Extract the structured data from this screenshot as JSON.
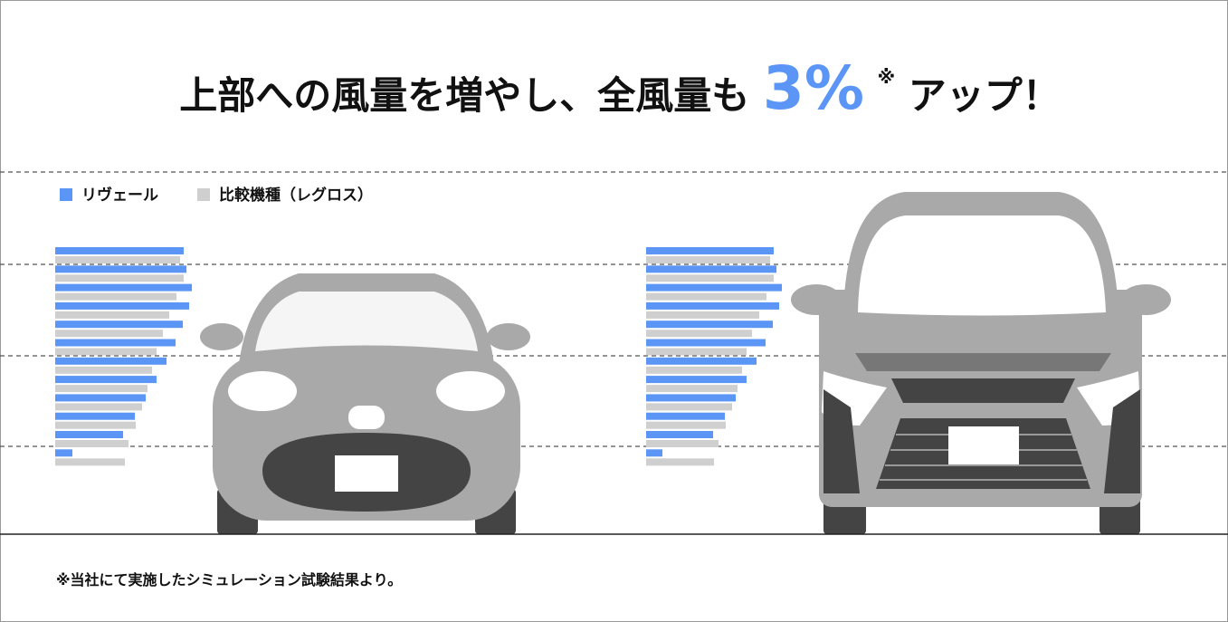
{
  "header": {
    "title_before": "上部への風量を増やし、全風量も",
    "title_highlight": "3%",
    "title_mark": "※",
    "title_after": "アップ！"
  },
  "chart_data": [
    {
      "type": "bar",
      "orientation": "horizontal",
      "series": [
        {
          "name": "リヴェール",
          "color": "#5b95f5",
          "values": [
            142,
            145,
            151,
            148,
            141,
            133,
            123,
            112,
            100,
            88,
            75,
            19
          ]
        },
        {
          "name": "比較機種（レグロス）",
          "color": "#cfcfcf",
          "values": [
            138,
            142,
            134,
            126,
            119,
            112,
            107,
            102,
            96,
            89,
            81,
            77
          ]
        }
      ]
    },
    {
      "type": "bar",
      "orientation": "horizontal",
      "series": [
        {
          "color": "#5b95f5",
          "values": [
            141,
            144,
            150,
            147,
            140,
            132,
            122,
            111,
            99,
            87,
            74,
            18
          ]
        },
        {
          "color": "#cfcfcf",
          "values": [
            137,
            141,
            133,
            125,
            117,
            111,
            106,
            101,
            95,
            88,
            80,
            75
          ]
        }
      ]
    }
  ],
  "footnote": "※当社にて実施したシミュレーション試験結果より。"
}
